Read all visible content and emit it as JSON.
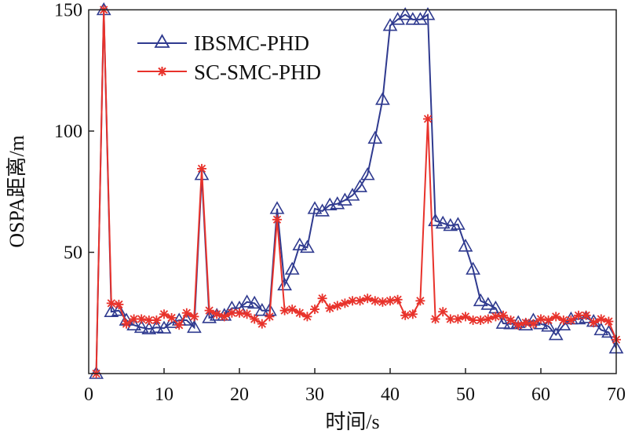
{
  "chart_data": {
    "type": "line",
    "title": "",
    "xlabel": "时间/s",
    "ylabel": "OSPA距离/m",
    "xlim": [
      0,
      70
    ],
    "ylim": [
      0,
      150
    ],
    "xticks": [
      "0",
      "10",
      "20",
      "30",
      "40",
      "50",
      "60",
      "70"
    ],
    "yticks": [
      "50",
      "100",
      "150"
    ],
    "grid": false,
    "legend_position": "top-left",
    "x": [
      1,
      2,
      3,
      4,
      5,
      6,
      7,
      8,
      9,
      10,
      11,
      12,
      13,
      14,
      15,
      16,
      17,
      18,
      19,
      20,
      21,
      22,
      23,
      24,
      25,
      26,
      27,
      28,
      29,
      30,
      31,
      32,
      33,
      34,
      35,
      36,
      37,
      38,
      39,
      40,
      41,
      42,
      43,
      44,
      45,
      46,
      47,
      48,
      49,
      50,
      51,
      52,
      53,
      54,
      55,
      56,
      57,
      58,
      59,
      60,
      61,
      62,
      63,
      64,
      65,
      66,
      67,
      68,
      69,
      70
    ],
    "series": [
      {
        "name": "IBSMC-PHD",
        "color": "#2f3a8f",
        "marker": "triangle",
        "values": [
          0,
          150,
          25.5,
          26,
          22,
          20,
          19,
          18.4,
          19,
          18.7,
          21,
          22,
          22,
          19,
          82,
          23,
          24,
          24,
          27,
          27,
          29.5,
          29,
          26,
          26,
          68,
          36.5,
          43,
          53,
          52,
          68,
          67,
          69.5,
          70,
          71.5,
          73.5,
          77,
          82,
          97,
          113,
          143.5,
          146,
          148,
          146,
          146,
          148,
          63,
          62,
          61,
          61.5,
          52.5,
          43,
          30,
          28.5,
          27,
          20.7,
          20.5,
          21,
          20,
          22,
          20.5,
          19.5,
          16,
          20,
          22.5,
          22.5,
          23,
          21.5,
          18,
          17,
          10.5
        ]
      },
      {
        "name": "SC-SMC-PHD",
        "color": "#e8322b",
        "marker": "star",
        "values": [
          0,
          150,
          29,
          28.5,
          20.5,
          22.5,
          22.5,
          22,
          22,
          24.5,
          23,
          20,
          25,
          23.5,
          84.5,
          26,
          24.5,
          23.5,
          25,
          25,
          24.5,
          22.5,
          20.5,
          23.5,
          63.5,
          26,
          26.5,
          25,
          23.5,
          26.5,
          31,
          27,
          28,
          29,
          30,
          30,
          31,
          30,
          29.5,
          30,
          30.5,
          24,
          24.5,
          30,
          105,
          22.5,
          25.5,
          22.5,
          22.5,
          23.5,
          22,
          22,
          22.5,
          23.5,
          24,
          22,
          20,
          21,
          20.5,
          22.5,
          22,
          23.5,
          22,
          22,
          24,
          24,
          21,
          22.5,
          21.5,
          14
        ]
      }
    ]
  }
}
